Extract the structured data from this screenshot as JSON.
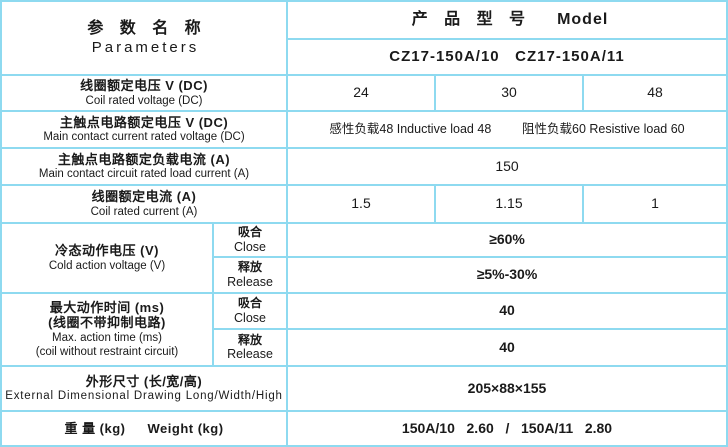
{
  "colors": {
    "grid": "#8edaf0",
    "text": "#1a1a1a",
    "background": "#ffffff"
  },
  "header": {
    "param_zh": "参 数 名 称",
    "param_en": "Parameters",
    "model_zh": "产 品 型 号",
    "model_en": "Model",
    "models": "CZ17-150A/10   CZ17-150A/11"
  },
  "rows": {
    "coil_voltage": {
      "zh": "线圈额定电压 V (DC)",
      "en": "Coil rated voltage (DC)",
      "v1": "24",
      "v2": "30",
      "v3": "48"
    },
    "contact_voltage": {
      "zh": "主触点电路额定电压 V (DC)",
      "en": "Main contact current rated voltage (DC)",
      "left": "感性负载48 Inductive load 48",
      "right": "阻性负载60 Resistive load 60"
    },
    "load_current": {
      "zh": "主触点电路额定负载电流 (A)",
      "en": "Main contact circuit rated load current (A)",
      "value": "150"
    },
    "coil_current": {
      "zh": "线圈额定电流 (A)",
      "en": "Coil rated current (A)",
      "v1": "1.5",
      "v2": "1.15",
      "v3": "1"
    },
    "cold_voltage": {
      "zh": "冷态动作电压 (V)",
      "en": "Cold action voltage (V)",
      "close_zh": "吸合",
      "close_en": "Close",
      "close_value": "≥60%",
      "release_zh": "释放",
      "release_en": "Release",
      "release_value": "≥5%-30%"
    },
    "max_time": {
      "zh1": "最大动作时间 (ms)",
      "zh2": "(线圈不带抑制电路)",
      "en1": "Max. action time (ms)",
      "en2": "(coil without restraint circuit)",
      "close_zh": "吸合",
      "close_en": "Close",
      "close_value": "40",
      "release_zh": "释放",
      "release_en": "Release",
      "release_value": "40"
    },
    "dimensions": {
      "zh": "外形尺寸 (长/宽/高)",
      "en": "External Dimensional Drawing Long/Width/High",
      "value": "205×88×155"
    },
    "weight": {
      "zh": "重 量 (kg)",
      "en": "Weight (kg)",
      "value": "150A/10   2.60   /   150A/11   2.80"
    }
  }
}
